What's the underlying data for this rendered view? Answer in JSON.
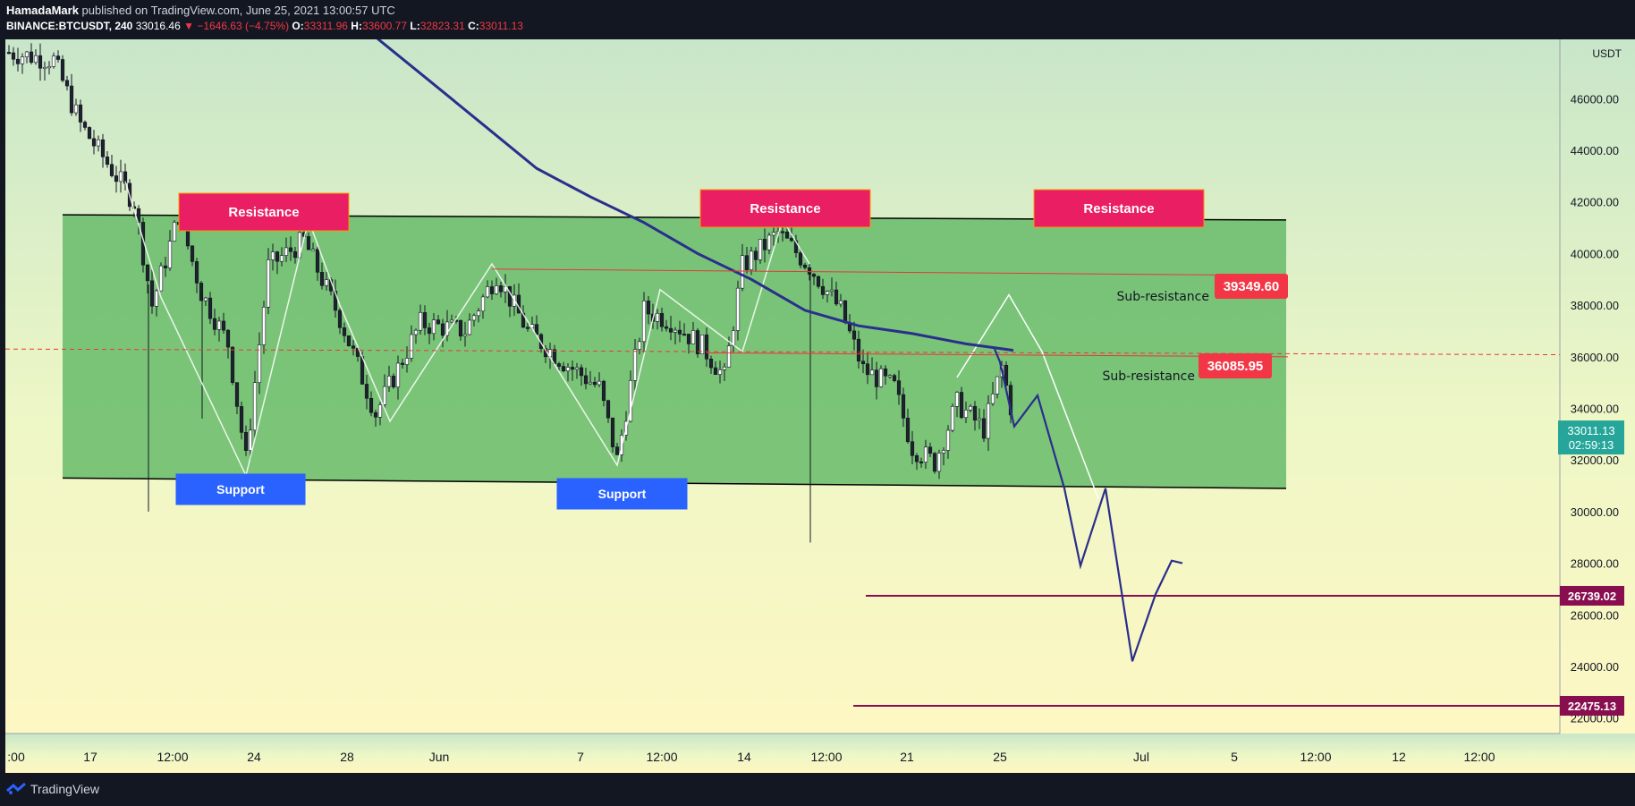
{
  "header": {
    "author": "HamadaMark",
    "published": " published on TradingView.com, June 25, 2021 13:00:57 UTC",
    "symbol": "BINANCE:BTCUSDT, 240",
    "last": "33016.46",
    "change": "▼ −1646.63 (−4.75%)",
    "o_label": "O:",
    "o": "33311.96",
    "h_label": "H:",
    "h": "33600.77",
    "l_label": "L:",
    "l": "32823.31",
    "c_label": "C:",
    "c": "33011.13"
  },
  "footer": {
    "brand": "TradingView"
  },
  "colors": {
    "up": "#ffffff",
    "down": "#1e222d",
    "channel": "#66bb6a",
    "resistance_box": "#e91e63",
    "support_box": "#2962ff",
    "ma_line": "#2a2e8c",
    "projection": "#2a2e8c",
    "target_line": "#880e4f",
    "sub_res_label": "#f23645",
    "current_price": "#26a69a"
  },
  "chart_data": {
    "type": "candlestick",
    "symbol": "BTCUSDT",
    "currency": "USDT",
    "y_range": [
      21400,
      48300
    ],
    "y_ticks": [
      "46000.00",
      "44000.00",
      "42000.00",
      "40000.00",
      "38000.00",
      "36000.00",
      "34000.00",
      "32000.00",
      "30000.00",
      "28000.00",
      "26000.00",
      "24000.00",
      "22000.00"
    ],
    "x_tick_labels": [
      ":00",
      "17",
      "12:00",
      "24",
      "28",
      "Jun",
      "7",
      "12:00",
      "14",
      "12:00",
      "21",
      "25",
      "Jul",
      "5",
      "12:00",
      "12",
      "12:00"
    ],
    "grid": false,
    "channel": {
      "top": [
        41500,
        41300
      ],
      "bottom": [
        31300,
        30900
      ]
    },
    "annotations": {
      "resistance": [
        "Resistance",
        "Resistance",
        "Resistance"
      ],
      "support": [
        "Support",
        "Support"
      ],
      "sub_resistance": [
        {
          "label": "Sub-resistance",
          "price": "39349.60"
        },
        {
          "label": "Sub-resistance",
          "price": "36085.95"
        }
      ]
    },
    "targets": [
      "26739.02",
      "22475.13"
    ],
    "current": {
      "price": "33011.13",
      "countdown": "02:59:13"
    },
    "projection_path": [
      36200,
      35000,
      36800,
      32000,
      31600,
      26000,
      24400,
      28600,
      34900,
      28100,
      33000,
      24100,
      28000
    ],
    "wave_path": [
      38400,
      36200,
      30500
    ]
  }
}
